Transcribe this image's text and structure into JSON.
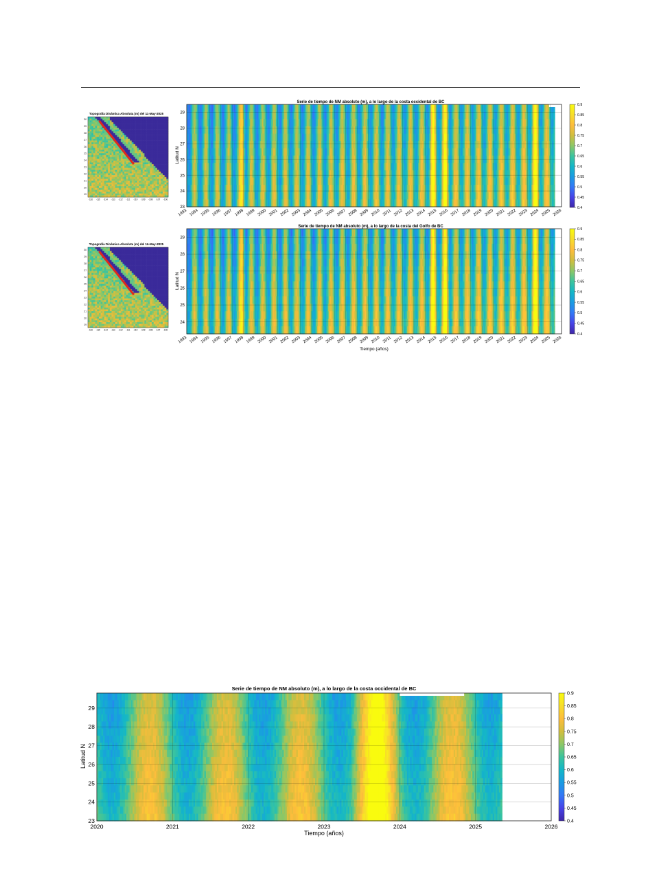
{
  "colorbar": {
    "ticks": [
      "0.4",
      "0.45",
      "0.5",
      "0.55",
      "0.6",
      "0.65",
      "0.7",
      "0.75",
      "0.8",
      "0.85",
      "0.9"
    ],
    "min": 0.4,
    "max": 0.9,
    "colors": [
      "#3e26a8",
      "#4743e8",
      "#3378f6",
      "#1a9be2",
      "#14b7c7",
      "#3cc49d",
      "#8dc766",
      "#d1be3e",
      "#fdbd3c",
      "#f7dd2b",
      "#f9fb0e"
    ]
  },
  "maps": [
    {
      "title": "Topografía Dinámica Absoluta (m) del 11-May-2025",
      "yticks": [
        "30",
        "29",
        "28",
        "27",
        "26",
        "25",
        "24",
        "23",
        "22",
        "21",
        "20",
        "19"
      ],
      "xticks": [
        "-116",
        "-115",
        "-114",
        "-113",
        "-112",
        "-111",
        "-110",
        "-109",
        "-108",
        "-107",
        "-106"
      ]
    },
    {
      "title": "Topografía Dinámica Absoluta (m) del 16-May-2025",
      "yticks": [
        "30",
        "29",
        "28",
        "27",
        "26",
        "25",
        "24",
        "23",
        "22",
        "21",
        "20",
        "19"
      ],
      "xticks": [
        "-116",
        "-115",
        "-114",
        "-113",
        "-112",
        "-111",
        "-110",
        "-109",
        "-108",
        "-107",
        "-106"
      ]
    }
  ],
  "chart_data": [
    {
      "type": "heatmap",
      "title": "Serie de tiempo de NM absoluto (m), a lo largo de la costa occidental de BC",
      "ylabel": "Latitud N",
      "xlabel": "",
      "xlim": [
        1993,
        2026
      ],
      "ylim": [
        23,
        29.5
      ],
      "x_tick_labels": [
        "1993",
        "1994",
        "1995",
        "1996",
        "1997",
        "1998",
        "1999",
        "2000",
        "2001",
        "2002",
        "2003",
        "2004",
        "2005",
        "2006",
        "2007",
        "2008",
        "2009",
        "2010",
        "2011",
        "2012",
        "2013",
        "2014",
        "2015",
        "2016",
        "2017",
        "2018",
        "2019",
        "2020",
        "2021",
        "2022",
        "2023",
        "2024",
        "2025",
        "2026"
      ],
      "y_tick_labels": [
        "23",
        "24",
        "25",
        "26",
        "27",
        "28",
        "29"
      ],
      "clim": [
        0.4,
        0.9
      ],
      "warm_years": [
        1997.9,
        2014.7,
        2015.8,
        2023.7
      ],
      "data_end": 2025.4
    },
    {
      "type": "heatmap",
      "title": "Serie de tiempo de NM absoluto (m), a lo largo de la costa del Golfo de BC",
      "ylabel": "Latitud N",
      "xlabel": "Tiempo (años)",
      "xlim": [
        1993,
        2026
      ],
      "ylim": [
        23.3,
        29.5
      ],
      "x_tick_labels": [
        "1993",
        "1994",
        "1995",
        "1996",
        "1997",
        "1998",
        "1999",
        "2000",
        "2001",
        "2002",
        "2003",
        "2004",
        "2005",
        "2006",
        "2007",
        "2008",
        "2009",
        "2010",
        "2011",
        "2012",
        "2013",
        "2014",
        "2015",
        "2016",
        "2017",
        "2018",
        "2019",
        "2020",
        "2021",
        "2022",
        "2023",
        "2024",
        "2025",
        "2026"
      ],
      "y_tick_labels": [
        "24",
        "25",
        "26",
        "27",
        "28",
        "29"
      ],
      "clim": [
        0.4,
        0.9
      ],
      "warm_years": [
        1997.9,
        2014.7,
        2015.8,
        2023.7
      ],
      "data_end": 2025.4
    },
    {
      "type": "heatmap",
      "title": "Serie de tiempo de NM absoluto (m), a lo largo de la costa occidental de BC",
      "ylabel": "Latitud N",
      "xlabel": "Tiempo (años)",
      "xlim": [
        2020,
        2026
      ],
      "ylim": [
        23,
        29.8
      ],
      "x_tick_labels": [
        "2020",
        "2021",
        "2022",
        "2023",
        "2024",
        "2025",
        "2026"
      ],
      "y_tick_labels": [
        "23",
        "24",
        "25",
        "26",
        "27",
        "28",
        "29"
      ],
      "clim": [
        0.4,
        0.9
      ],
      "warm_years": [
        2023.7
      ],
      "data_end": 2025.35
    }
  ]
}
